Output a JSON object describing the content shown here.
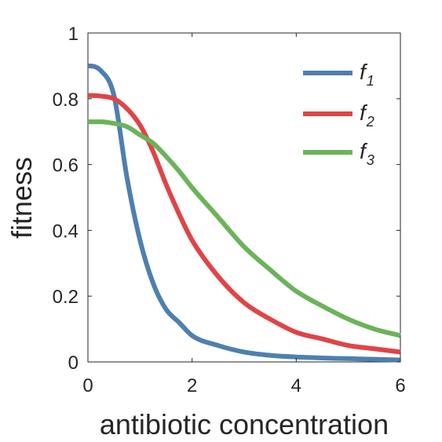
{
  "chart_data": {
    "type": "line",
    "xlabel": "antibiotic concentration",
    "ylabel": "fitness",
    "xlim": [
      0,
      6
    ],
    "ylim": [
      0,
      1
    ],
    "xticks": [
      0,
      2,
      4,
      6
    ],
    "yticks": [
      0,
      0.2,
      0.4,
      0.6,
      0.8,
      1
    ],
    "xtick_labels": [
      "0",
      "2",
      "4",
      "6"
    ],
    "ytick_labels": [
      "0",
      "0.2",
      "0.4",
      "0.6",
      "0.8",
      "1"
    ],
    "grid": false,
    "legend_position": "top-right",
    "x": [
      0,
      0.25,
      0.5,
      0.75,
      1,
      1.25,
      1.5,
      1.75,
      2,
      2.5,
      3,
      3.5,
      4,
      4.5,
      5,
      5.5,
      6
    ],
    "series": [
      {
        "legend": {
          "base": "f",
          "sub": "1"
        },
        "color": "#4e7fb0",
        "values": [
          0.9,
          0.885,
          0.81,
          0.56,
          0.37,
          0.24,
          0.16,
          0.12,
          0.08,
          0.05,
          0.03,
          0.02,
          0.015,
          0.012,
          0.01,
          0.008,
          0.006
        ]
      },
      {
        "legend": {
          "base": "f",
          "sub": "2"
        },
        "color": "#e04447",
        "values": [
          0.81,
          0.808,
          0.8,
          0.77,
          0.72,
          0.64,
          0.54,
          0.45,
          0.37,
          0.26,
          0.18,
          0.13,
          0.09,
          0.07,
          0.05,
          0.04,
          0.03
        ]
      },
      {
        "legend": {
          "base": "f",
          "sub": "3"
        },
        "color": "#6bb35b",
        "values": [
          0.73,
          0.73,
          0.725,
          0.715,
          0.69,
          0.665,
          0.625,
          0.58,
          0.53,
          0.44,
          0.35,
          0.28,
          0.215,
          0.17,
          0.13,
          0.1,
          0.08
        ]
      }
    ]
  }
}
